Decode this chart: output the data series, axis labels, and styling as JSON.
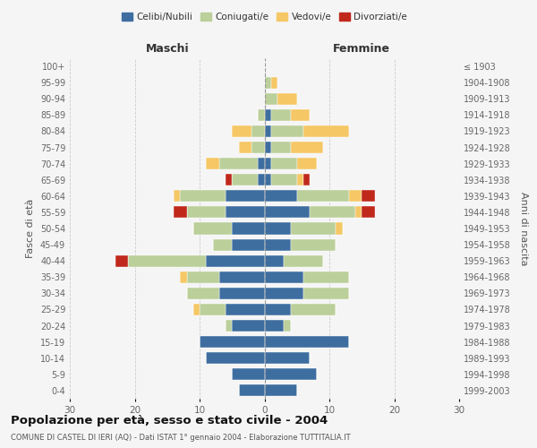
{
  "age_groups": [
    "0-4",
    "5-9",
    "10-14",
    "15-19",
    "20-24",
    "25-29",
    "30-34",
    "35-39",
    "40-44",
    "45-49",
    "50-54",
    "55-59",
    "60-64",
    "65-69",
    "70-74",
    "75-79",
    "80-84",
    "85-89",
    "90-94",
    "95-99",
    "100+"
  ],
  "birth_years": [
    "1999-2003",
    "1994-1998",
    "1989-1993",
    "1984-1988",
    "1979-1983",
    "1974-1978",
    "1969-1973",
    "1964-1968",
    "1959-1963",
    "1954-1958",
    "1949-1953",
    "1944-1948",
    "1939-1943",
    "1934-1938",
    "1929-1933",
    "1924-1928",
    "1919-1923",
    "1914-1918",
    "1909-1913",
    "1904-1908",
    "≤ 1903"
  ],
  "maschi": {
    "celibi": [
      4,
      5,
      9,
      10,
      5,
      6,
      7,
      7,
      9,
      5,
      5,
      6,
      6,
      1,
      1,
      0,
      0,
      0,
      0,
      0,
      0
    ],
    "coniugati": [
      0,
      0,
      0,
      0,
      1,
      4,
      5,
      5,
      12,
      3,
      6,
      6,
      7,
      4,
      6,
      2,
      2,
      1,
      0,
      0,
      0
    ],
    "vedovi": [
      0,
      0,
      0,
      0,
      0,
      1,
      0,
      1,
      0,
      0,
      0,
      0,
      1,
      0,
      2,
      2,
      3,
      0,
      0,
      0,
      0
    ],
    "divorziati": [
      0,
      0,
      0,
      0,
      0,
      0,
      0,
      0,
      2,
      0,
      0,
      2,
      0,
      1,
      0,
      0,
      0,
      0,
      0,
      0,
      0
    ]
  },
  "femmine": {
    "nubili": [
      5,
      8,
      7,
      13,
      3,
      4,
      6,
      6,
      3,
      4,
      4,
      7,
      5,
      1,
      1,
      1,
      1,
      1,
      0,
      0,
      0
    ],
    "coniugate": [
      0,
      0,
      0,
      0,
      1,
      7,
      7,
      7,
      6,
      7,
      7,
      7,
      8,
      4,
      4,
      3,
      5,
      3,
      2,
      1,
      0
    ],
    "vedove": [
      0,
      0,
      0,
      0,
      0,
      0,
      0,
      0,
      0,
      0,
      1,
      1,
      2,
      1,
      3,
      5,
      7,
      3,
      3,
      1,
      0
    ],
    "divorziate": [
      0,
      0,
      0,
      0,
      0,
      0,
      0,
      0,
      0,
      0,
      0,
      2,
      2,
      1,
      0,
      0,
      0,
      0,
      0,
      0,
      0
    ]
  },
  "colors": {
    "celibi_nubili": "#3E6EA0",
    "coniugati": "#BBCF9A",
    "vedovi": "#F5C765",
    "divorziati": "#C0281C"
  },
  "xlim": 30,
  "title": "Popolazione per età, sesso e stato civile - 2004",
  "subtitle": "COMUNE DI CASTEL DI IERI (AQ) - Dati ISTAT 1° gennaio 2004 - Elaborazione TUTTITALIA.IT",
  "ylabel_left": "Fasce di età",
  "ylabel_right": "Anni di nascita",
  "xlabel_left": "Maschi",
  "xlabel_right": "Femmine",
  "legend_labels": [
    "Celibi/Nubili",
    "Coniugati/e",
    "Vedovi/e",
    "Divorziati/e"
  ],
  "background_color": "#f5f5f5"
}
